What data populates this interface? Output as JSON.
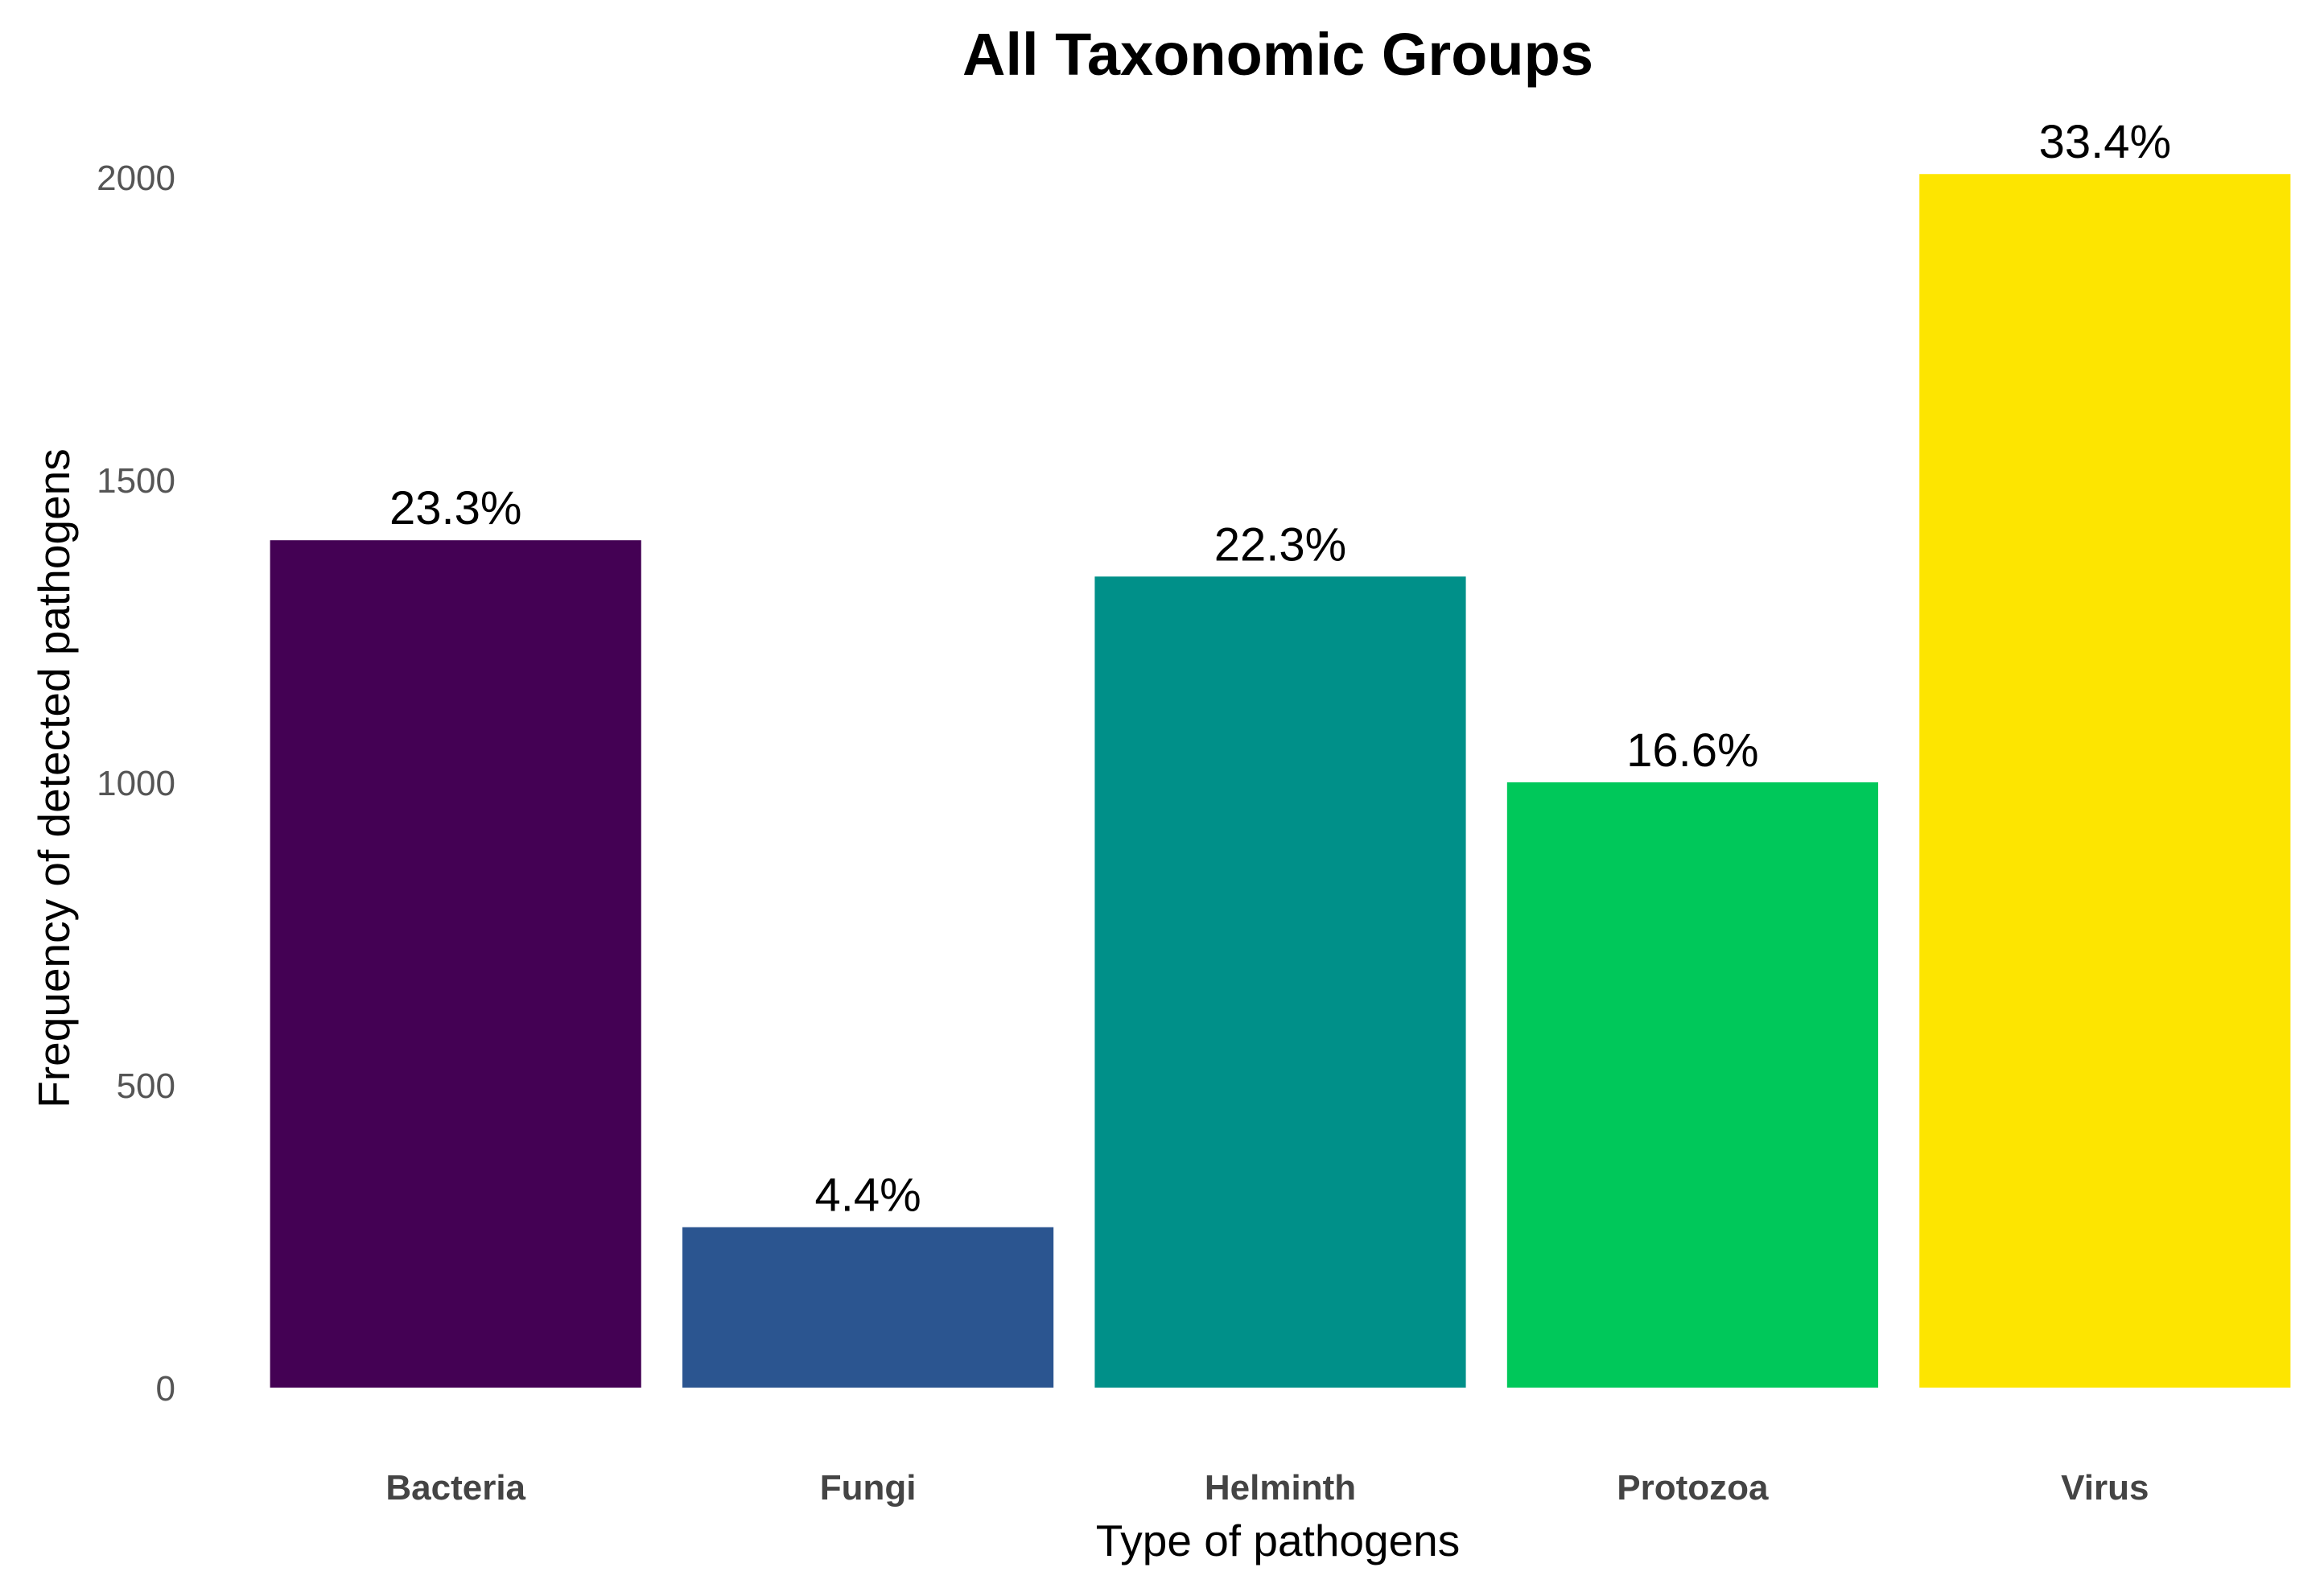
{
  "chart_data": {
    "type": "bar",
    "title": "All Taxonomic Groups",
    "xlabel": "Type of pathogens",
    "ylabel": "Frequency of detected pathogens",
    "categories": [
      "Bacteria",
      "Fungi",
      "Helminth",
      "Protozoa",
      "Virus"
    ],
    "values": [
      1400,
      265,
      1340,
      1000,
      2005
    ],
    "data_labels": [
      "23.3%",
      "4.4%",
      "22.3%",
      "16.6%",
      "33.4%"
    ],
    "colors": [
      "#440154",
      "#2b5590",
      "#009089",
      "#00c85a",
      "#fde500"
    ],
    "yticks": [
      0,
      500,
      1000,
      1500,
      2000
    ],
    "ytick_labels": [
      "0",
      "500",
      "1000",
      "1500",
      "2000"
    ],
    "ylim": [
      0,
      2000
    ],
    "grid": false,
    "legend": "none"
  }
}
